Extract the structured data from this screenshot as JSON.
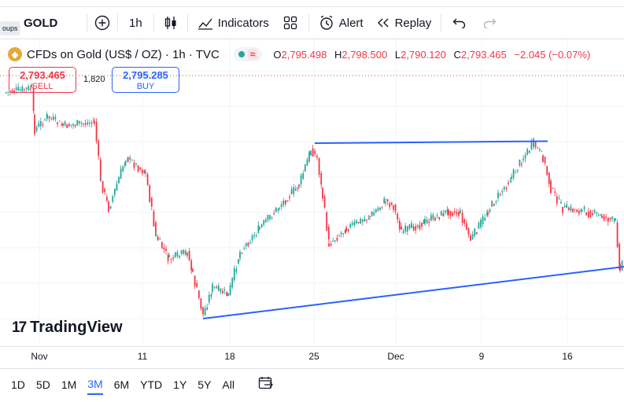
{
  "toolbar": {
    "groups_tip": "oups",
    "symbol": "GOLD",
    "interval": "1h",
    "indicators_label": "Indicators",
    "alert_label": "Alert",
    "replay_label": "Replay"
  },
  "legend": {
    "title": "CFDs on Gold (US$ / OZ) · 1h · TVC",
    "o_label": "O",
    "o_value": "2,795.498",
    "h_label": "H",
    "h_value": "2,798.500",
    "l_label": "L",
    "l_value": "2,790.120",
    "c_label": "C",
    "c_value": "2,793.465",
    "change": "−2.045 (−0.07%)",
    "status_mark": "≈"
  },
  "trade": {
    "sell_price": "2,793.465",
    "sell_label": "SELL",
    "buy_price": "2,795.285",
    "buy_label": "BUY",
    "spread": "1,820"
  },
  "branding": {
    "logo_text": "TradingView"
  },
  "x_axis": [
    "Nov",
    "11",
    "18",
    "25",
    "Dec",
    "9",
    "16"
  ],
  "ranges": [
    "1D",
    "5D",
    "1M",
    "3M",
    "6M",
    "YTD",
    "1Y",
    "5Y",
    "All"
  ],
  "active_range": "3M",
  "colors": {
    "up": "#26a69a",
    "down": "#f23645",
    "trendline": "#2962ff",
    "price_line": "#f23645"
  }
}
